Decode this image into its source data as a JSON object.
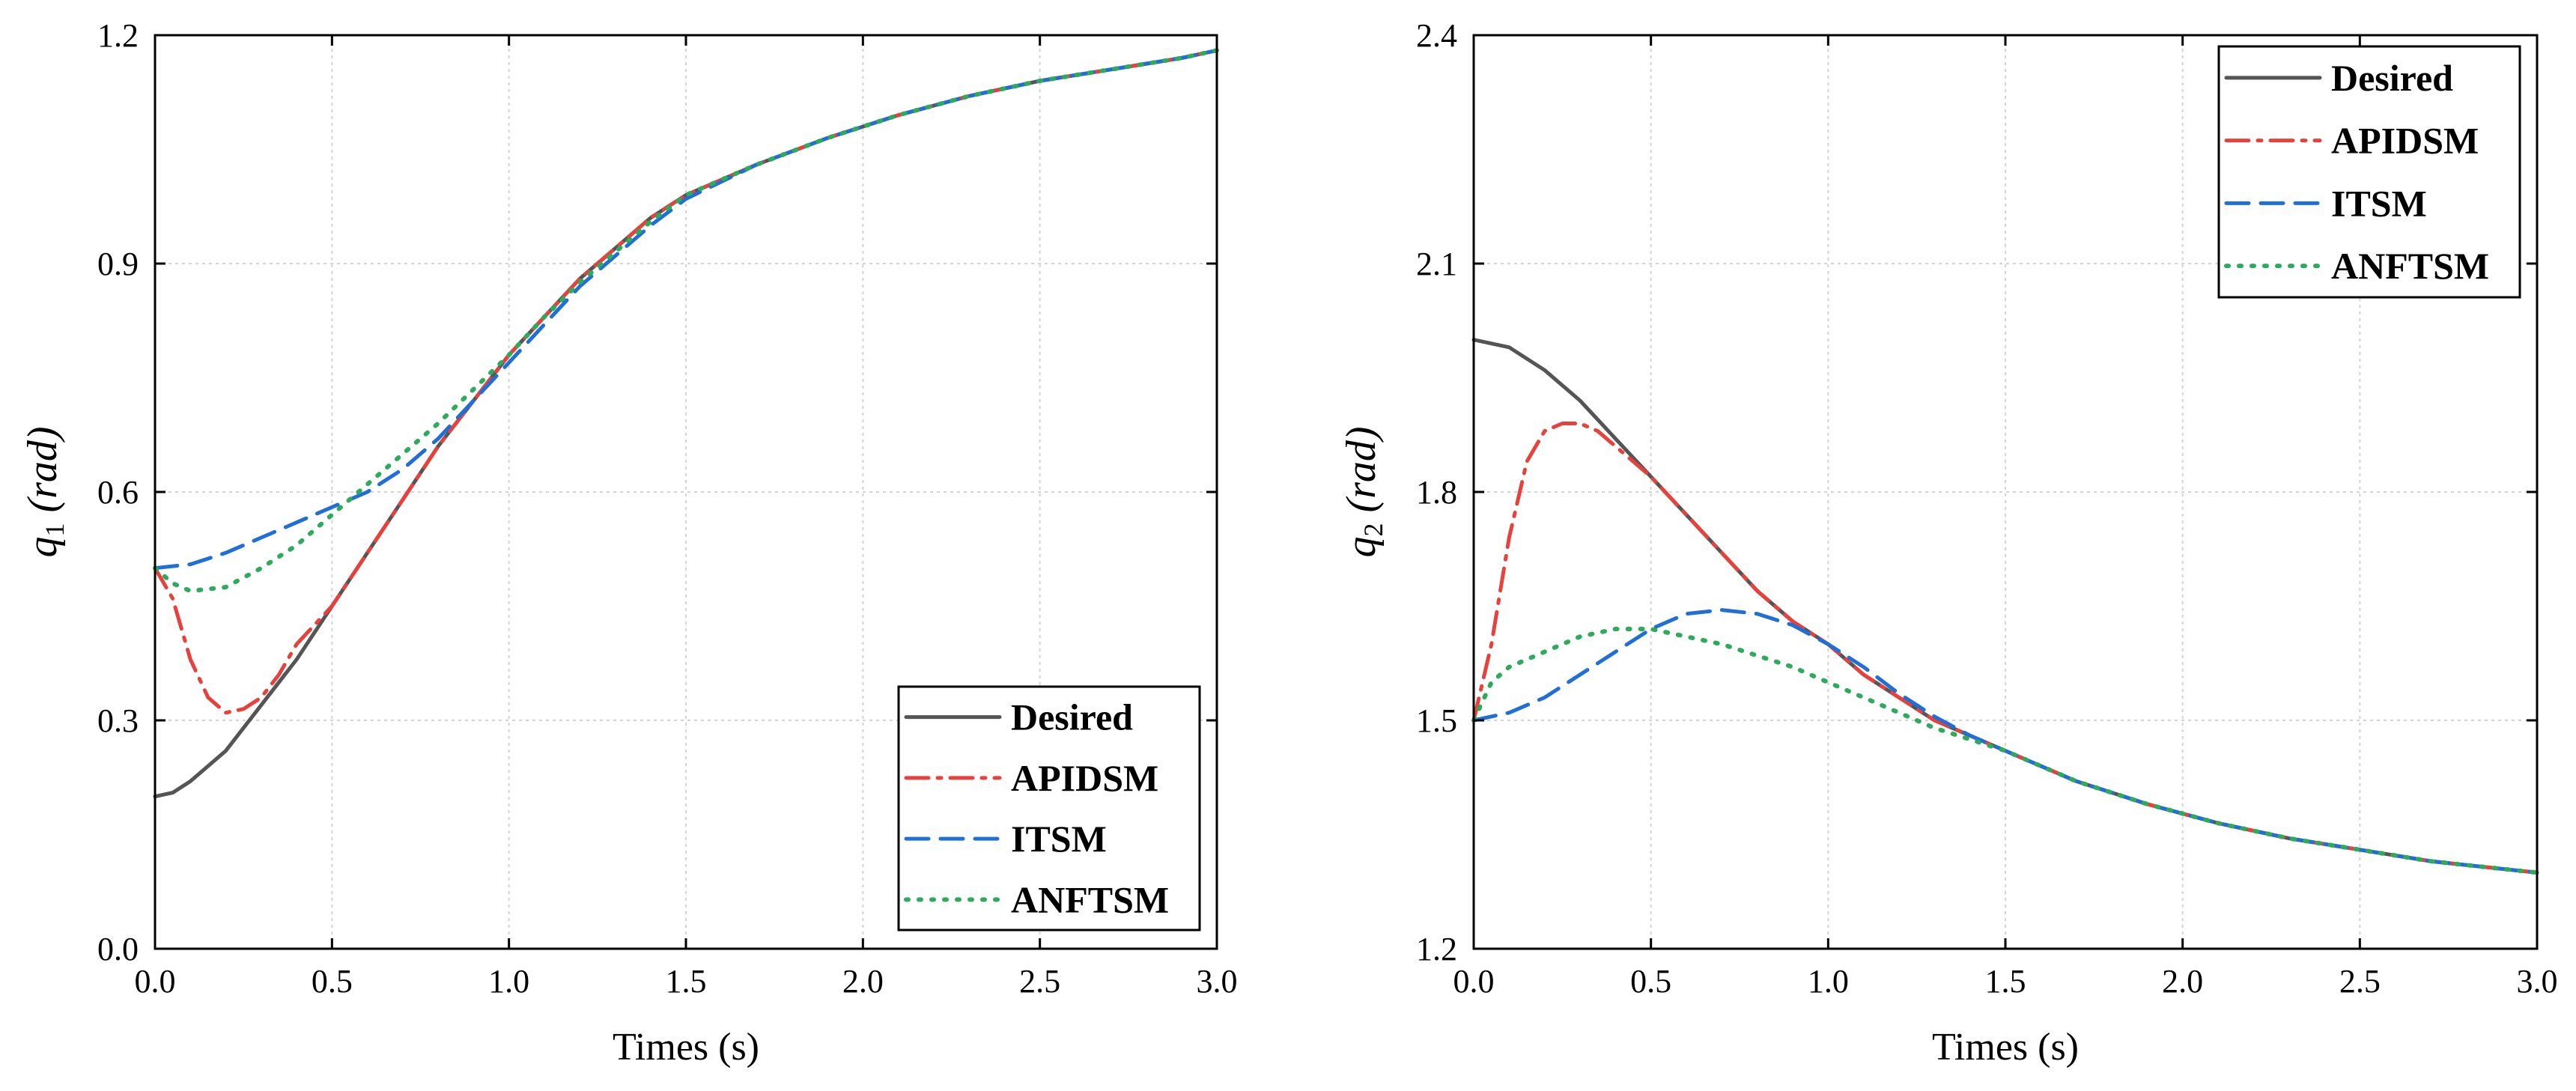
{
  "chart_data": [
    {
      "type": "line",
      "xlabel": "Times (s)",
      "ylabel": {
        "symbol": "q",
        "subscript": "1",
        "unit": " (rad)"
      },
      "xlim": [
        0,
        3
      ],
      "ylim": [
        0,
        1.2
      ],
      "xticks": [
        0,
        0.5,
        1,
        1.5,
        2,
        2.5,
        3
      ],
      "xtick_labels": [
        "0.0",
        "0.5",
        "1.0",
        "1.5",
        "2.0",
        "2.5",
        "3.0"
      ],
      "yticks": [
        0,
        0.3,
        0.6,
        0.9,
        1.2
      ],
      "ytick_labels": [
        "0.0",
        "0.3",
        "0.6",
        "0.9",
        "1.2"
      ],
      "grid": true,
      "legend_position": "bottom-right",
      "series": [
        {
          "name": "Desired",
          "style": "solid",
          "color": "#555555",
          "x": [
            0,
            0.05,
            0.1,
            0.2,
            0.3,
            0.4,
            0.5,
            0.6,
            0.7,
            0.8,
            0.9,
            1.0,
            1.1,
            1.2,
            1.3,
            1.4,
            1.5,
            1.7,
            1.9,
            2.1,
            2.3,
            2.5,
            2.7,
            2.9,
            3.0
          ],
          "y": [
            0.2,
            0.205,
            0.22,
            0.26,
            0.32,
            0.38,
            0.45,
            0.52,
            0.59,
            0.66,
            0.72,
            0.78,
            0.83,
            0.88,
            0.92,
            0.96,
            0.99,
            1.03,
            1.065,
            1.095,
            1.12,
            1.14,
            1.155,
            1.17,
            1.18
          ]
        },
        {
          "name": "APIDSM",
          "style": "dashdot",
          "color": "#e8413c",
          "x": [
            0,
            0.05,
            0.1,
            0.15,
            0.2,
            0.25,
            0.3,
            0.35,
            0.4,
            0.5,
            0.6,
            0.7,
            0.8,
            0.9,
            1.0,
            1.1,
            1.2,
            1.3,
            1.4,
            1.5,
            1.7,
            1.9,
            2.1,
            2.3,
            2.5,
            2.7,
            2.9,
            3.0
          ],
          "y": [
            0.5,
            0.46,
            0.38,
            0.33,
            0.31,
            0.315,
            0.33,
            0.36,
            0.4,
            0.45,
            0.52,
            0.59,
            0.66,
            0.72,
            0.78,
            0.83,
            0.88,
            0.92,
            0.96,
            0.99,
            1.03,
            1.065,
            1.095,
            1.12,
            1.14,
            1.155,
            1.17,
            1.18
          ]
        },
        {
          "name": "ITSM",
          "style": "dashed",
          "color": "#1f6fd6",
          "x": [
            0,
            0.1,
            0.2,
            0.3,
            0.4,
            0.5,
            0.6,
            0.7,
            0.8,
            0.9,
            1.0,
            1.1,
            1.2,
            1.3,
            1.4,
            1.5,
            1.7,
            1.9,
            2.1,
            2.3,
            2.5,
            2.7,
            2.9,
            3.0
          ],
          "y": [
            0.5,
            0.505,
            0.52,
            0.54,
            0.56,
            0.58,
            0.6,
            0.63,
            0.67,
            0.72,
            0.77,
            0.82,
            0.87,
            0.91,
            0.95,
            0.985,
            1.03,
            1.065,
            1.095,
            1.12,
            1.14,
            1.155,
            1.17,
            1.18
          ]
        },
        {
          "name": "ANFTSM",
          "style": "dotted",
          "color": "#2eaa5c",
          "x": [
            0,
            0.05,
            0.1,
            0.2,
            0.3,
            0.4,
            0.5,
            0.6,
            0.7,
            0.8,
            0.9,
            1.0,
            1.1,
            1.2,
            1.3,
            1.4,
            1.5,
            1.7,
            1.9,
            2.1,
            2.3,
            2.5,
            2.7,
            2.9,
            3.0
          ],
          "y": [
            0.5,
            0.48,
            0.47,
            0.475,
            0.5,
            0.53,
            0.57,
            0.61,
            0.65,
            0.69,
            0.735,
            0.78,
            0.83,
            0.875,
            0.915,
            0.955,
            0.99,
            1.03,
            1.065,
            1.095,
            1.12,
            1.14,
            1.155,
            1.17,
            1.18
          ]
        }
      ]
    },
    {
      "type": "line",
      "xlabel": "Times (s)",
      "ylabel": {
        "symbol": "q",
        "subscript": "2",
        "unit": " (rad)"
      },
      "xlim": [
        0,
        3
      ],
      "ylim": [
        1.2,
        2.4
      ],
      "xticks": [
        0,
        0.5,
        1,
        1.5,
        2,
        2.5,
        3
      ],
      "xtick_labels": [
        "0.0",
        "0.5",
        "1.0",
        "1.5",
        "2.0",
        "2.5",
        "3.0"
      ],
      "yticks": [
        1.2,
        1.5,
        1.8,
        2.1,
        2.4
      ],
      "ytick_labels": [
        "1.2",
        "1.5",
        "1.8",
        "2.1",
        "2.4"
      ],
      "grid": true,
      "legend_position": "top-right",
      "series": [
        {
          "name": "Desired",
          "style": "solid",
          "color": "#555555",
          "x": [
            0,
            0.1,
            0.2,
            0.3,
            0.4,
            0.5,
            0.6,
            0.7,
            0.8,
            0.9,
            1.0,
            1.1,
            1.2,
            1.3,
            1.4,
            1.5,
            1.7,
            1.9,
            2.1,
            2.3,
            2.5,
            2.7,
            2.9,
            3.0
          ],
          "y": [
            2.0,
            1.99,
            1.96,
            1.92,
            1.87,
            1.82,
            1.77,
            1.72,
            1.67,
            1.63,
            1.6,
            1.56,
            1.53,
            1.5,
            1.48,
            1.46,
            1.42,
            1.39,
            1.365,
            1.345,
            1.33,
            1.315,
            1.305,
            1.3
          ]
        },
        {
          "name": "APIDSM",
          "style": "dashdot",
          "color": "#e8413c",
          "x": [
            0,
            0.05,
            0.1,
            0.15,
            0.2,
            0.25,
            0.3,
            0.35,
            0.4,
            0.5,
            0.6,
            0.7,
            0.8,
            0.9,
            1.0,
            1.1,
            1.2,
            1.3,
            1.4,
            1.5,
            1.7,
            1.9,
            2.1,
            2.3,
            2.5,
            2.7,
            2.9,
            3.0
          ],
          "y": [
            1.5,
            1.6,
            1.74,
            1.84,
            1.88,
            1.89,
            1.89,
            1.88,
            1.86,
            1.82,
            1.77,
            1.72,
            1.67,
            1.63,
            1.6,
            1.56,
            1.53,
            1.5,
            1.48,
            1.46,
            1.42,
            1.39,
            1.365,
            1.345,
            1.33,
            1.315,
            1.305,
            1.3
          ]
        },
        {
          "name": "ITSM",
          "style": "dashed",
          "color": "#1f6fd6",
          "x": [
            0,
            0.1,
            0.2,
            0.3,
            0.4,
            0.5,
            0.6,
            0.7,
            0.8,
            0.9,
            1.0,
            1.1,
            1.2,
            1.3,
            1.4,
            1.5,
            1.7,
            1.9,
            2.1,
            2.3,
            2.5,
            2.7,
            2.9,
            3.0
          ],
          "y": [
            1.5,
            1.51,
            1.53,
            1.56,
            1.59,
            1.62,
            1.64,
            1.645,
            1.64,
            1.625,
            1.6,
            1.57,
            1.535,
            1.505,
            1.48,
            1.46,
            1.42,
            1.39,
            1.365,
            1.345,
            1.33,
            1.315,
            1.305,
            1.3
          ]
        },
        {
          "name": "ANFTSM",
          "style": "dotted",
          "color": "#2eaa5c",
          "x": [
            0,
            0.05,
            0.1,
            0.2,
            0.3,
            0.4,
            0.5,
            0.6,
            0.7,
            0.8,
            0.9,
            1.0,
            1.1,
            1.2,
            1.3,
            1.4,
            1.5,
            1.7,
            1.9,
            2.1,
            2.3,
            2.5,
            2.7,
            2.9,
            3.0
          ],
          "y": [
            1.5,
            1.55,
            1.57,
            1.59,
            1.61,
            1.62,
            1.62,
            1.61,
            1.6,
            1.585,
            1.57,
            1.55,
            1.53,
            1.51,
            1.49,
            1.475,
            1.46,
            1.42,
            1.39,
            1.365,
            1.345,
            1.33,
            1.315,
            1.305,
            1.3
          ]
        }
      ]
    }
  ]
}
